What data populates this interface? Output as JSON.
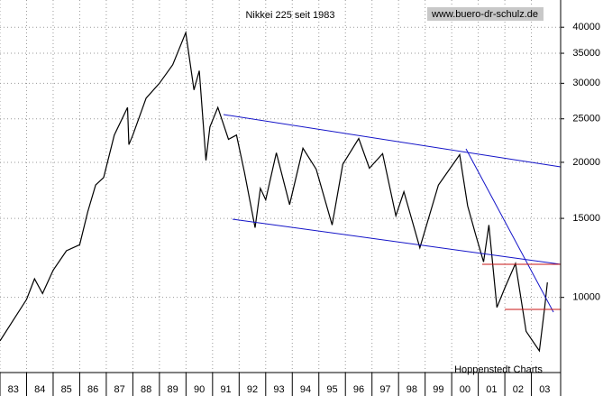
{
  "chart_data": {
    "type": "line",
    "title": "Nikkei 225 seit 1983",
    "source": "www.buero-dr-schulz.de",
    "credit": "Hoppenstedt Charts",
    "x": [
      1983.0,
      1983.5,
      1984.0,
      1984.3,
      1984.6,
      1985.0,
      1985.5,
      1986.0,
      1986.3,
      1986.6,
      1986.9,
      1987.3,
      1987.8,
      1987.85,
      1988.0,
      1988.5,
      1989.0,
      1989.5,
      1989.99,
      1990.3,
      1990.5,
      1990.75,
      1990.9,
      1991.2,
      1991.6,
      1991.9,
      1992.2,
      1992.6,
      1992.8,
      1993.0,
      1993.4,
      1993.9,
      1994.4,
      1994.9,
      1995.5,
      1995.9,
      1996.5,
      1996.9,
      1997.4,
      1997.9,
      1998.2,
      1998.8,
      1999.5,
      2000.3,
      2000.6,
      2000.9,
      2001.2,
      2001.4,
      2001.7,
      2002.0,
      2002.4,
      2002.8,
      2003.3,
      2003.5,
      2003.6
    ],
    "values": [
      8000,
      8900,
      9900,
      11000,
      10200,
      11500,
      12700,
      13100,
      15500,
      17800,
      18500,
      23000,
      26500,
      21900,
      23000,
      27800,
      30000,
      33000,
      38900,
      29000,
      32000,
      20200,
      24000,
      26500,
      22500,
      23000,
      19000,
      14300,
      17500,
      16500,
      21000,
      16100,
      21500,
      19300,
      14500,
      19800,
      22600,
      19400,
      20900,
      15200,
      17200,
      12900,
      17800,
      20800,
      16000,
      13800,
      12000,
      14500,
      9500,
      10500,
      11900,
      8400,
      7600,
      9500,
      10800
    ],
    "color": "#000000",
    "xlim": [
      1983,
      2004.1
    ],
    "xticks": [
      {
        "value": 1983,
        "label": "83"
      },
      {
        "value": 1984,
        "label": "84"
      },
      {
        "value": 1985,
        "label": "85"
      },
      {
        "value": 1986,
        "label": "86"
      },
      {
        "value": 1987,
        "label": "87"
      },
      {
        "value": 1988,
        "label": "88"
      },
      {
        "value": 1989,
        "label": "89"
      },
      {
        "value": 1990,
        "label": "90"
      },
      {
        "value": 1991,
        "label": "91"
      },
      {
        "value": 1992,
        "label": "92"
      },
      {
        "value": 1993,
        "label": "93"
      },
      {
        "value": 1994,
        "label": "94"
      },
      {
        "value": 1995,
        "label": "95"
      },
      {
        "value": 1996,
        "label": "96"
      },
      {
        "value": 1997,
        "label": "97"
      },
      {
        "value": 1998,
        "label": "98"
      },
      {
        "value": 1999,
        "label": "99"
      },
      {
        "value": 2000,
        "label": "00"
      },
      {
        "value": 2001,
        "label": "01"
      },
      {
        "value": 2002,
        "label": "02"
      },
      {
        "value": 2003,
        "label": "03"
      }
    ],
    "ylim": [
      6800,
      46000
    ],
    "yticks": [
      10000,
      15000,
      20000,
      25000,
      30000,
      35000,
      40000
    ],
    "log_scale": true,
    "grid": true
  }
}
